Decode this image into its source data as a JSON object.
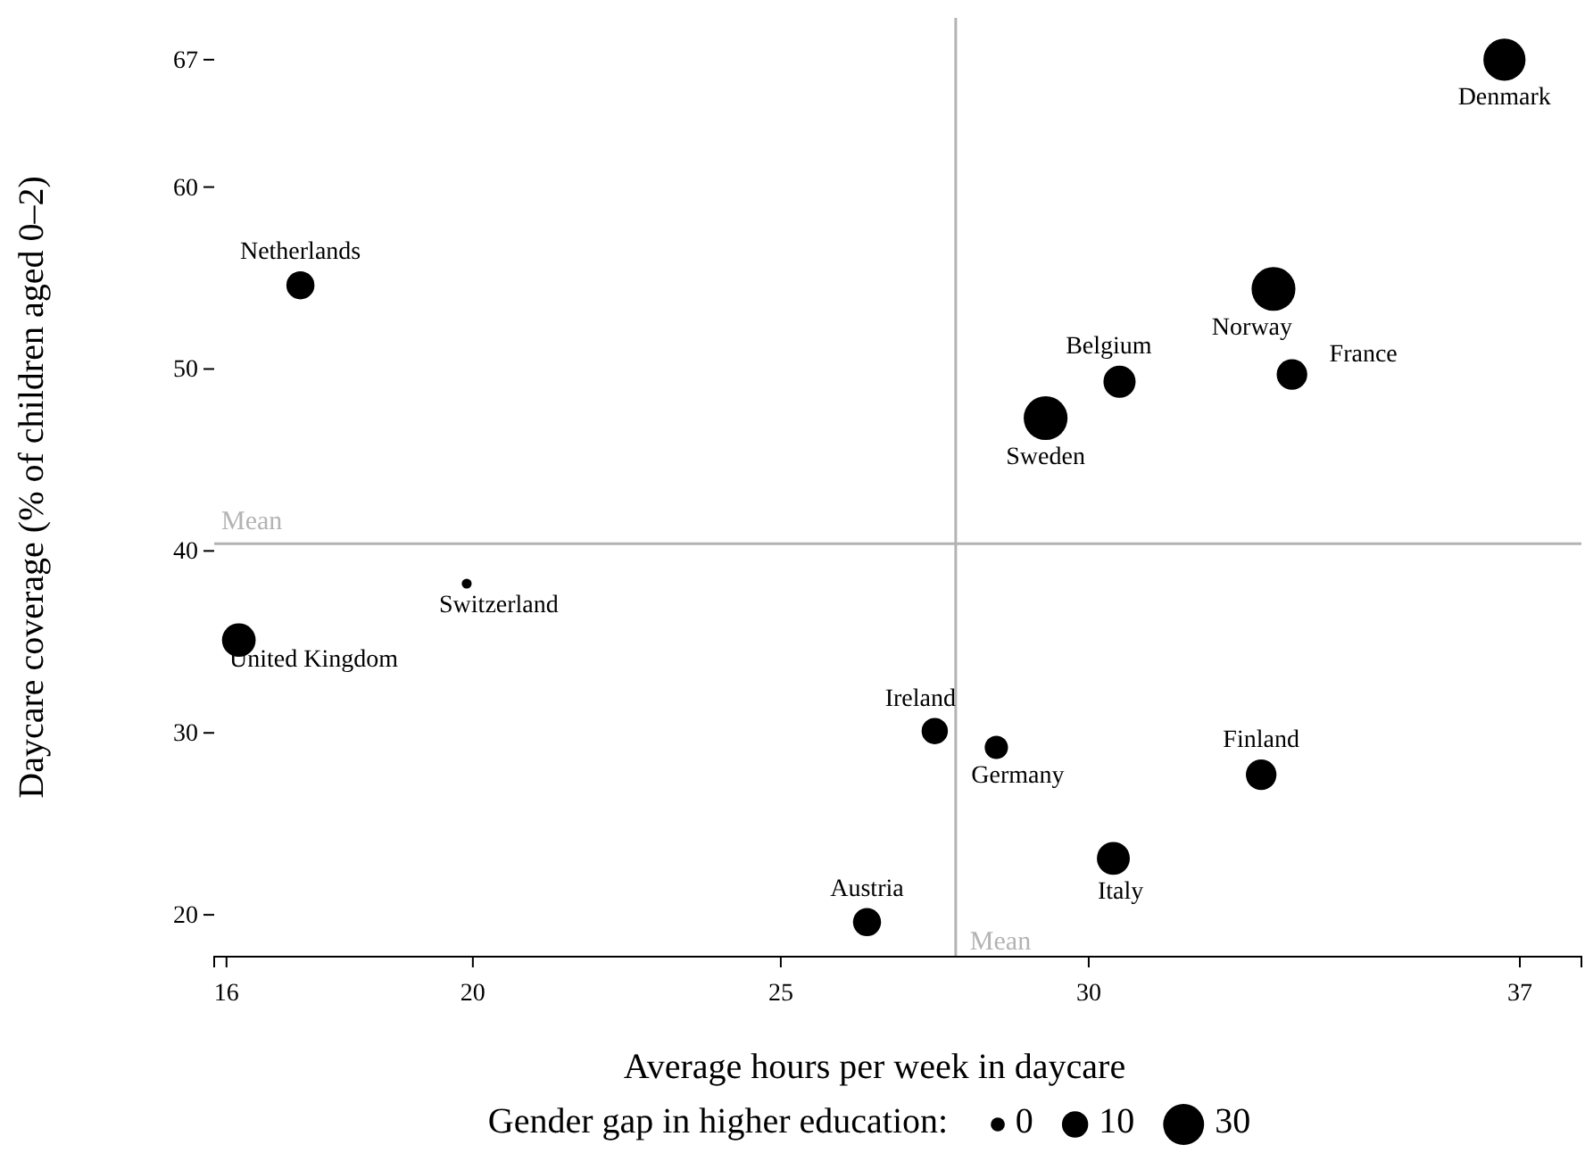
{
  "chart_data": {
    "type": "bubble",
    "xlabel": "Average hours per week in daycare",
    "ylabel": "Daycare coverage (% of children aged 0–2)",
    "legend_title": "Gender gap in higher education:",
    "legend": "bottom",
    "size_legend": [
      {
        "value": 4,
        "label": "0"
      },
      {
        "value": 14,
        "label": "10"
      },
      {
        "value": 34,
        "label": "30"
      }
    ],
    "xlim": [
      15.8,
      38
    ],
    "xticks": [
      16,
      20,
      25,
      30,
      37
    ],
    "ylim": [
      17.7,
      69.3
    ],
    "yticks": [
      20,
      30,
      40,
      50,
      60,
      67
    ],
    "ref_lines": [
      {
        "axis": "x",
        "value": 27.84,
        "label": "Mean",
        "color": "#b3b3b3"
      },
      {
        "axis": "y",
        "value": 40.4,
        "label": "Mean",
        "color": "#b3b3b3"
      }
    ],
    "series": [
      {
        "name": "Denmark",
        "color": "#000000",
        "x": [
          36.75
        ],
        "values": [
          67
        ],
        "sizes": [
          36
        ]
      },
      {
        "name": "Netherlands",
        "color": "#000000",
        "x": [
          17.2
        ],
        "values": [
          54.6
        ],
        "sizes": [
          16
        ]
      },
      {
        "name": "Norway",
        "color": "#000000",
        "x": [
          33.0
        ],
        "values": [
          54.4
        ],
        "sizes": [
          39
        ]
      },
      {
        "name": "France",
        "color": "#000000",
        "x": [
          33.3
        ],
        "values": [
          49.7
        ],
        "sizes": [
          19
        ]
      },
      {
        "name": "Belgium",
        "color": "#000000",
        "x": [
          30.5
        ],
        "values": [
          49.3
        ],
        "sizes": [
          21
        ]
      },
      {
        "name": "Sweden",
        "color": "#000000",
        "x": [
          29.3
        ],
        "values": [
          47.3
        ],
        "sizes": [
          39
        ]
      },
      {
        "name": "Switzerland",
        "color": "#000000",
        "x": [
          19.9
        ],
        "values": [
          38.2
        ],
        "sizes": [
          2
        ]
      },
      {
        "name": "United Kingdom",
        "color": "#000000",
        "x": [
          16.2
        ],
        "values": [
          35.1
        ],
        "sizes": [
          23
        ]
      },
      {
        "name": "Ireland",
        "color": "#000000",
        "x": [
          27.5
        ],
        "values": [
          30.1
        ],
        "sizes": [
          14
        ]
      },
      {
        "name": "Germany",
        "color": "#000000",
        "x": [
          28.5
        ],
        "values": [
          29.2
        ],
        "sizes": [
          11
        ]
      },
      {
        "name": "Finland",
        "color": "#000000",
        "x": [
          32.8
        ],
        "values": [
          27.7
        ],
        "sizes": [
          19
        ]
      },
      {
        "name": "Italy",
        "color": "#000000",
        "x": [
          30.4
        ],
        "values": [
          23.1
        ],
        "sizes": [
          22
        ]
      },
      {
        "name": "Austria",
        "color": "#000000",
        "x": [
          26.4
        ],
        "values": [
          19.6
        ],
        "sizes": [
          16
        ]
      }
    ]
  }
}
